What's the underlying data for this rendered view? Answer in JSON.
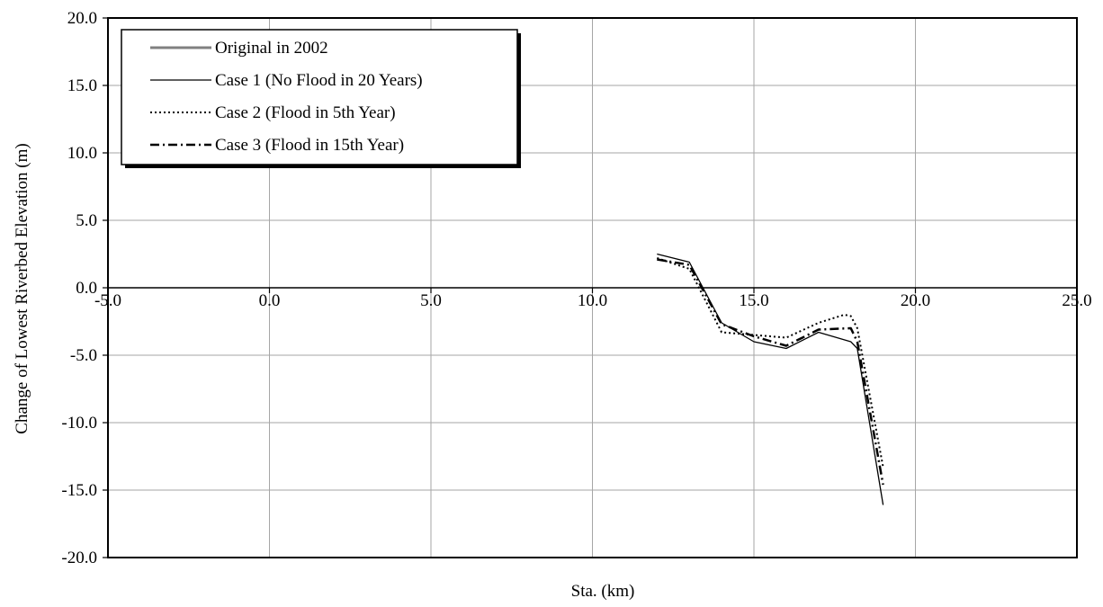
{
  "chart_data": {
    "type": "line",
    "title": "",
    "xlabel": "Sta. (km)",
    "ylabel": "Change of Lowest Riverbed Elevation (m)",
    "xlim": [
      -5.0,
      25.0
    ],
    "ylim": [
      -20.0,
      20.0
    ],
    "x_ticks": [
      -5.0,
      0.0,
      5.0,
      10.0,
      15.0,
      20.0,
      25.0
    ],
    "y_ticks": [
      20.0,
      15.0,
      10.0,
      5.0,
      0.0,
      -5.0,
      -10.0,
      -15.0,
      -20.0
    ],
    "x_tick_labels": [
      "-5.0",
      "0.0",
      "5.0",
      "10.0",
      "15.0",
      "20.0",
      "25.0"
    ],
    "y_tick_labels": [
      "20.0",
      "15.0",
      "10.0",
      "5.0",
      "0.0",
      "-5.0",
      "-10.0",
      "-15.0",
      "-20.0"
    ],
    "grid": true,
    "legend_position": "top-left",
    "series": [
      {
        "name": "Original in 2002",
        "color": "#808080",
        "style": "solid-thick",
        "x": [],
        "y": []
      },
      {
        "name": "Case 1 (No Flood in 20 Years)",
        "color": "#000000",
        "style": "solid",
        "x": [
          12.0,
          13.0,
          14.0,
          15.0,
          16.0,
          17.0,
          18.0,
          18.2,
          19.0
        ],
        "y": [
          2.5,
          1.9,
          -2.6,
          -4.0,
          -4.5,
          -3.3,
          -4.0,
          -4.5,
          -16.1
        ]
      },
      {
        "name": "Case 2 (Flood in 5th Year)",
        "color": "#000000",
        "style": "dotted",
        "x": [
          12.0,
          13.0,
          14.0,
          15.0,
          16.0,
          17.0,
          17.8,
          18.0,
          18.2,
          19.0
        ],
        "y": [
          2.2,
          1.4,
          -3.3,
          -3.5,
          -3.7,
          -2.6,
          -2.0,
          -2.1,
          -3.0,
          -13.3
        ]
      },
      {
        "name": "Case 3 (Flood in 15th Year)",
        "color": "#000000",
        "style": "dash-dot",
        "x": [
          12.0,
          13.0,
          14.0,
          15.0,
          16.0,
          17.0,
          18.0,
          18.2,
          19.0
        ],
        "y": [
          2.1,
          1.7,
          -2.7,
          -3.6,
          -4.3,
          -3.1,
          -3.0,
          -4.0,
          -14.6
        ]
      }
    ]
  }
}
